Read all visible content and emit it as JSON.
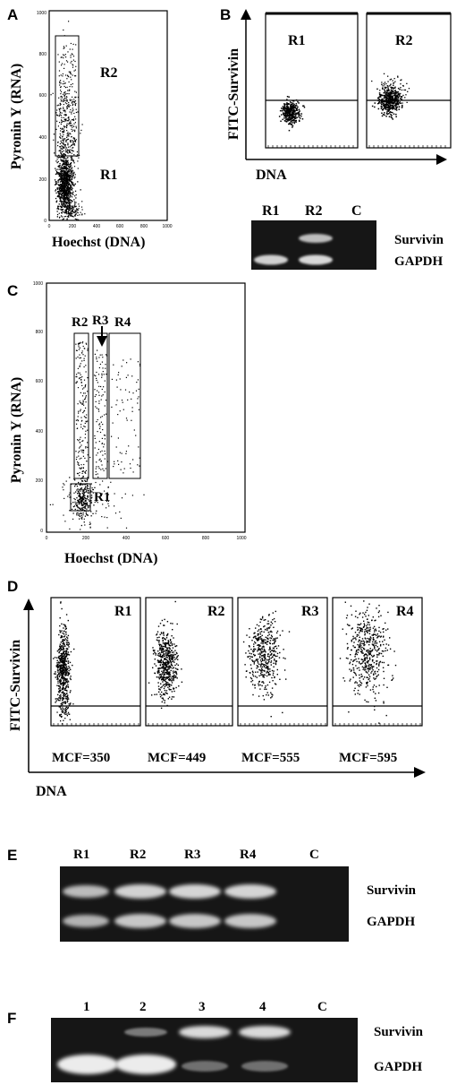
{
  "panels": {
    "A": {
      "letter": "A",
      "ylabel": "Pyronin Y (RNA)",
      "xlabel": "Hoechst (DNA)",
      "yticks": [
        "0",
        "200",
        "400",
        "600",
        "800",
        "1000"
      ],
      "xticks": [
        "0",
        "200",
        "400",
        "600",
        "800",
        "1000"
      ],
      "regions": [
        "R2",
        "R1"
      ]
    },
    "B": {
      "letter": "B",
      "ylabel": "FITC-Survivin",
      "xlabel": "DNA",
      "plots": [
        "R1",
        "R2"
      ],
      "gel": {
        "lanes": [
          "R1",
          "R2",
          "C"
        ],
        "bands": [
          "Survivin",
          "GAPDH"
        ]
      }
    },
    "C": {
      "letter": "C",
      "ylabel": "Pyronin Y (RNA)",
      "xlabel": "Hoechst (DNA)",
      "yticks": [
        "0",
        "200",
        "400",
        "600",
        "800",
        "1000"
      ],
      "xticks": [
        "0",
        "200",
        "400",
        "600",
        "800",
        "1000"
      ],
      "regions": [
        "R1",
        "R2",
        "R3",
        "R4"
      ]
    },
    "D": {
      "letter": "D",
      "ylabel": "FITC-Survivin",
      "xlabel": "DNA",
      "plots": [
        "R1",
        "R2",
        "R3",
        "R4"
      ],
      "mcf": [
        "MCF=350",
        "MCF=449",
        "MCF=555",
        "MCF=595"
      ]
    },
    "E": {
      "letter": "E",
      "lanes": [
        "R1",
        "R2",
        "R3",
        "R4",
        "C"
      ],
      "bands": [
        "Survivin",
        "GAPDH"
      ]
    },
    "F": {
      "letter": "F",
      "lanes": [
        "1",
        "2",
        "3",
        "4",
        "C"
      ],
      "bands": [
        "Survivin",
        "GAPDH"
      ]
    }
  },
  "colors": {
    "ink": "#000000",
    "gel_bg": "#161616",
    "band": "#e8e8e8"
  }
}
